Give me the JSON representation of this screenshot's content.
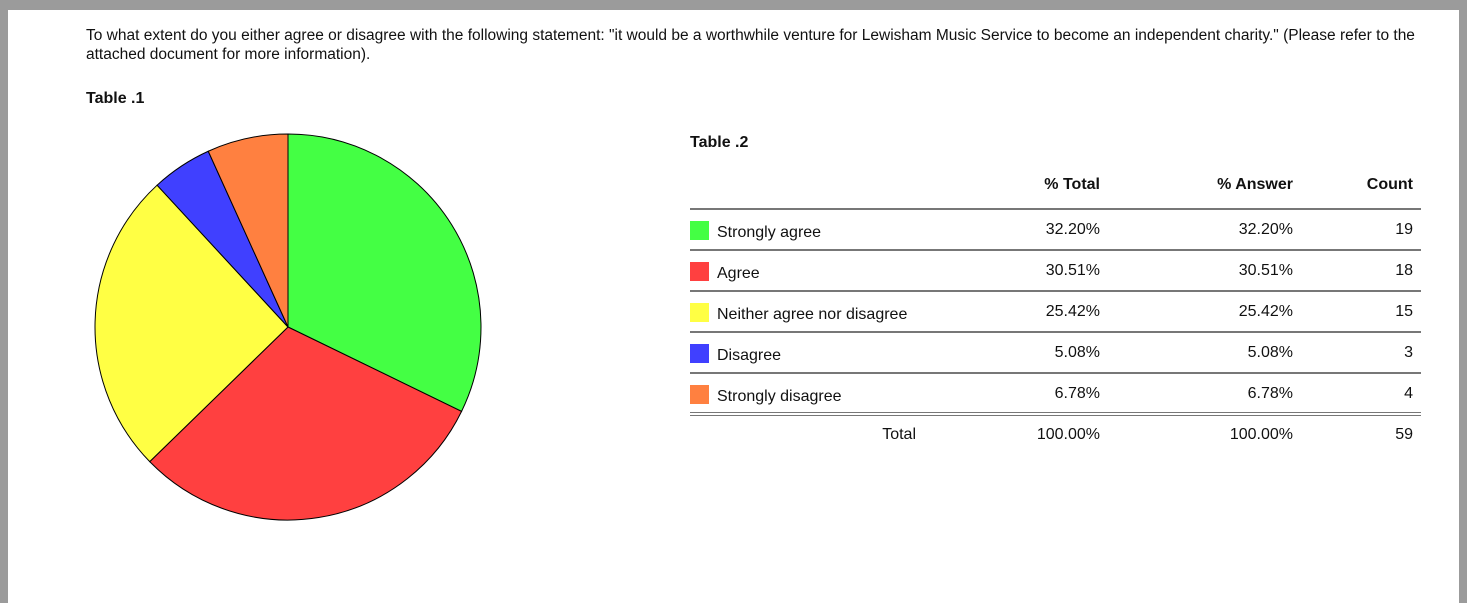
{
  "question": "To what extent do you either agree or disagree with the following statement: \"it would be a worthwhile venture for Lewisham Music Service to become an independent charity.\" (Please refer to the attached document for more information).",
  "table1": {
    "title": "Table .1",
    "chart": {
      "type": "pie"
    }
  },
  "table2": {
    "title": "Table .2",
    "columns": [
      "% Total",
      "% Answer",
      "Count"
    ],
    "rows": [
      {
        "label": "Strongly agree",
        "color": "#44ff44",
        "total": "32.20%",
        "answer": "32.20%",
        "count": 19
      },
      {
        "label": "Agree",
        "color": "#ff4040",
        "total": "30.51%",
        "answer": "30.51%",
        "count": 18
      },
      {
        "label": "Neither agree nor disagree",
        "color": "#ffff44",
        "total": "25.42%",
        "answer": "25.42%",
        "count": 15
      },
      {
        "label": "Disagree",
        "color": "#4040ff",
        "total": "5.08%",
        "answer": "5.08%",
        "count": 3
      },
      {
        "label": "Strongly disagree",
        "color": "#ff8040",
        "total": "6.78%",
        "answer": "6.78%",
        "count": 4
      }
    ],
    "footer": {
      "label": "Total",
      "total": "100.00%",
      "answer": "100.00%",
      "count": 59
    }
  }
}
